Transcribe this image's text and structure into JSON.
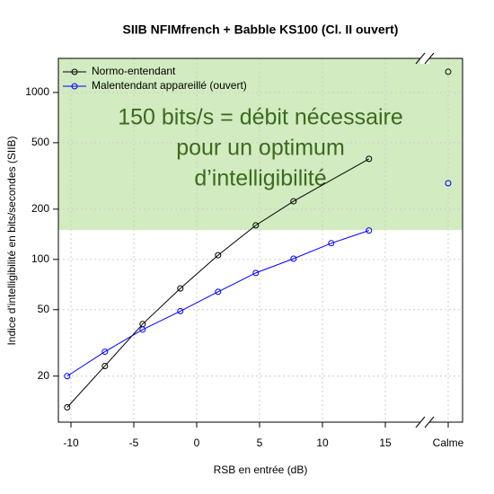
{
  "chart_data": {
    "type": "line",
    "title": "SIIB NFIMfrench + Babble KS100 (Cl. II ouvert)",
    "x_label": "RSB en entrée (dB)",
    "y_label": "Indice d'intelligibilité en bits/secondes (SIIB)",
    "xlim": [
      -11,
      18
    ],
    "xticks": [
      -10,
      -5,
      0,
      5,
      10,
      15
    ],
    "ylim": [
      10.6,
      1600
    ],
    "yticks": [
      20,
      50,
      100,
      200,
      500,
      1000
    ],
    "log_y": true,
    "grid": true,
    "legend": "top-left",
    "calme_label": "Calme",
    "threshold": 150,
    "threshold_color": "#d2ebc0",
    "annotation": [
      "150 bits/s = débit nécessaire",
      "pour un optimum",
      "d’intelligibilité"
    ],
    "series": [
      {
        "name": "Normo-entendant",
        "color": "#000000",
        "x": [
          -10.3,
          -7.3,
          -4.3,
          -1.3,
          1.7,
          4.7,
          7.7,
          13.7
        ],
        "values": [
          13,
          23,
          41,
          67,
          106,
          160,
          223,
          400
        ],
        "calme_value": 1330
      },
      {
        "name": "Malentendant appareillé (ouvert)",
        "color": "#0000ff",
        "x": [
          -10.3,
          -7.3,
          -4.3,
          -1.3,
          1.7,
          4.7,
          7.7,
          10.7,
          13.7
        ],
        "values": [
          20,
          28,
          38,
          49,
          64,
          83,
          101,
          125,
          149
        ],
        "calme_value": 286
      }
    ]
  }
}
